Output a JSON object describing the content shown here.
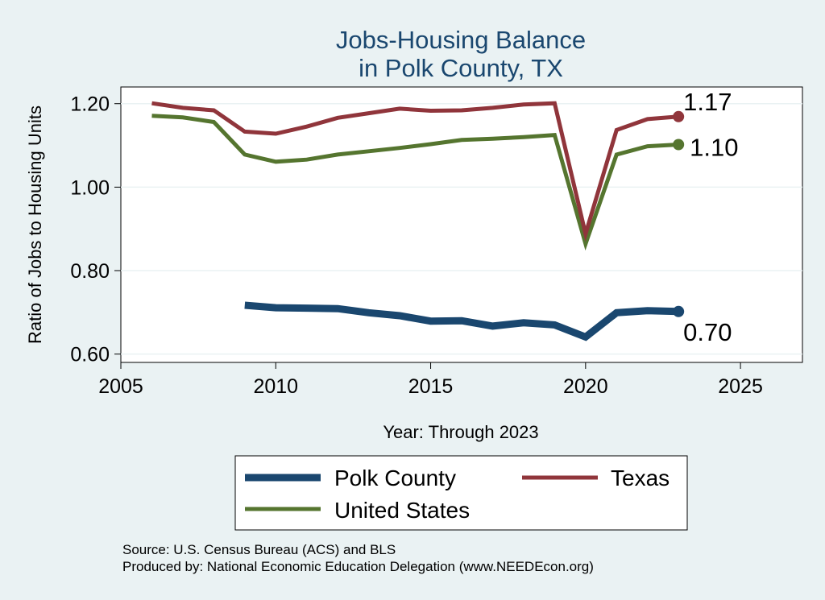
{
  "chart_data": {
    "type": "line",
    "title": [
      "Jobs-Housing Balance",
      "in Polk County, TX"
    ],
    "xlabel": "Year: Through 2023",
    "ylabel": "Ratio of Jobs to Housing Units",
    "xlim": [
      2005,
      2027
    ],
    "ylim": [
      0.58,
      1.24
    ],
    "xticks": [
      2005,
      2010,
      2015,
      2020,
      2025
    ],
    "yticks": [
      0.6,
      0.8,
      1.0,
      1.2
    ],
    "ytick_labels": [
      "0.60",
      "0.80",
      "1.00",
      "1.20"
    ],
    "grid": "horizontal",
    "legend_position": "bottom",
    "series": [
      {
        "name": "Polk County",
        "color": "#1a476f",
        "x": [
          2009,
          2010,
          2011,
          2012,
          2013,
          2014,
          2015,
          2016,
          2017,
          2018,
          2019,
          2020,
          2021,
          2022,
          2023
        ],
        "values": [
          0.717,
          0.711,
          0.71,
          0.709,
          0.699,
          0.692,
          0.679,
          0.68,
          0.667,
          0.675,
          0.67,
          0.641,
          0.699,
          0.704,
          0.702
        ],
        "end_label": "0.70"
      },
      {
        "name": "Texas",
        "color": "#90353b",
        "x": [
          2006,
          2007,
          2008,
          2009,
          2010,
          2011,
          2012,
          2013,
          2014,
          2015,
          2016,
          2017,
          2018,
          2019,
          2020,
          2021,
          2022,
          2023
        ],
        "values": [
          1.201,
          1.19,
          1.184,
          1.133,
          1.128,
          1.145,
          1.166,
          1.177,
          1.188,
          1.183,
          1.184,
          1.19,
          1.198,
          1.201,
          0.888,
          1.137,
          1.163,
          1.169
        ],
        "end_label": "1.17"
      },
      {
        "name": "United States",
        "color": "#55752f",
        "x": [
          2006,
          2007,
          2008,
          2009,
          2010,
          2011,
          2012,
          2013,
          2014,
          2015,
          2016,
          2017,
          2018,
          2019,
          2020,
          2021,
          2022,
          2023
        ],
        "values": [
          1.171,
          1.167,
          1.156,
          1.078,
          1.061,
          1.066,
          1.078,
          1.086,
          1.094,
          1.103,
          1.113,
          1.116,
          1.12,
          1.125,
          0.864,
          1.078,
          1.098,
          1.102
        ],
        "end_label": "1.10"
      }
    ],
    "source_lines": [
      "Source: U.S. Census Bureau (ACS) and BLS",
      "Produced by: National Economic Education Delegation (www.NEEDEcon.org)"
    ]
  }
}
